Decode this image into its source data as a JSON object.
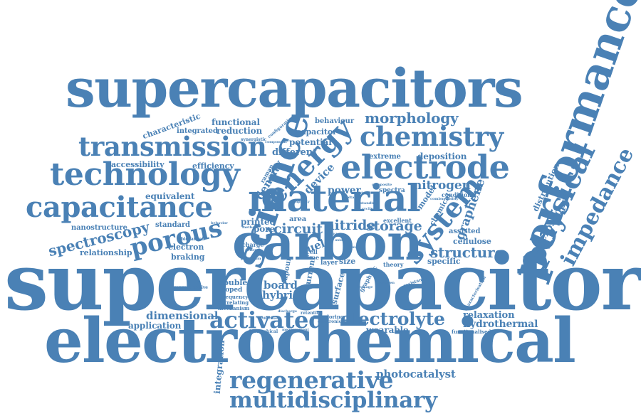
{
  "cloud": {
    "color": "#4a81b5",
    "background": "#ffffff",
    "words": {
      "supercapacitor": "supercapacitor",
      "electrochemical": "electrochemical",
      "supercapacitors": "supercapacitors",
      "performance": "performance",
      "carbon": "carbon",
      "material": "material",
      "science": "science",
      "electrode": "electrode",
      "technology": "technology",
      "capacitance": "capacitance",
      "transmission": "transmission",
      "chemistry": "chemistry",
      "energy": "energy",
      "system": "system",
      "physical": "physical",
      "impedance": "impedance",
      "porous": "porous",
      "activated": "activated",
      "electrolyte": "electrolyte",
      "regenerative": "regenerative",
      "multidisciplinary": "multidisciplinary",
      "spectroscopy": "spectroscopy",
      "morphology": "morphology",
      "structure": "structure",
      "nitrogen": "nitrogen",
      "graphene": "graphene",
      "storage": "storage",
      "nitride": "nitride",
      "circuit": "circuit",
      "density": "density",
      "device": "device",
      "fuel": "fuel",
      "board": "board",
      "hybrid": "hybrid",
      "dimensional": "dimensional",
      "application": "application",
      "photocatalyst": "photocatalyst",
      "hydrothermal": "hydrothermal",
      "relaxation": "relaxation",
      "wearable": "wearable",
      "microscope": "microscope",
      "distribution": "distribution",
      "integration": "integration",
      "functional": "functional",
      "reduction": "reduction",
      "integrated": "integrated",
      "behaviour": "behaviour",
      "capacitor": "capacitor",
      "potential": "potential",
      "different": "different",
      "deposition": "deposition",
      "extreme": "extreme",
      "accessibility": "accessibility",
      "efficiency": "efficiency",
      "equivalent": "equivalent",
      "nanostructure": "nanostructure",
      "standard": "standard",
      "relationship": "relationship",
      "electron": "electron",
      "braking": "braking",
      "power": "power",
      "specific": "specific",
      "cellulose": "cellulose",
      "assisted": "assisted",
      "printed": "printed",
      "area": "area",
      "pore": "pore",
      "surface": "surface",
      "size": "size",
      "layer": "layer",
      "double": "double",
      "doped": "doped",
      "frequency": "frequency",
      "correlating": "correlating",
      "mechanism": "mechanism",
      "representative": "representative",
      "characteristic": "characteristic",
      "model": "model",
      "chemical": "chemical",
      "spectra": "spectra",
      "current": "current",
      "vapour": "vapour",
      "excellent": "excellent",
      "condition": "condition",
      "charge": "charge",
      "raman": "raman",
      "time": "time",
      "cell": "cell",
      "theory": "theory",
      "exploring": "exploring",
      "electronic": "electronic",
      "retention": "retention",
      "measurement": "measurement",
      "hierarchical": "hierarchical",
      "functionalised": "functionalised",
      "characterisation": "characterisation",
      "resistance": "resistance",
      "graphitic": "graphitic",
      "biocarbon": "biocarbon",
      "potassium": "potassium",
      "behavior": "behavior",
      "synergistic": "synergistic",
      "component": "component",
      "configuration": "configuration",
      "general": "general",
      "method": "method",
      "standing": "standing",
      "cycling": "cycling",
      "composite": "composite",
      "flexible": "flexible",
      "combustibility": "combustibility",
      "oxide": "oxide",
      "voltage": "voltage",
      "solid": "solid",
      "capacity": "capacity",
      "discharge": "discharge",
      "hydrogen": "hydrogen",
      "boosting": "boosting",
      "design": "design",
      "thermal": "thermal",
      "leakage": "leakage"
    }
  }
}
